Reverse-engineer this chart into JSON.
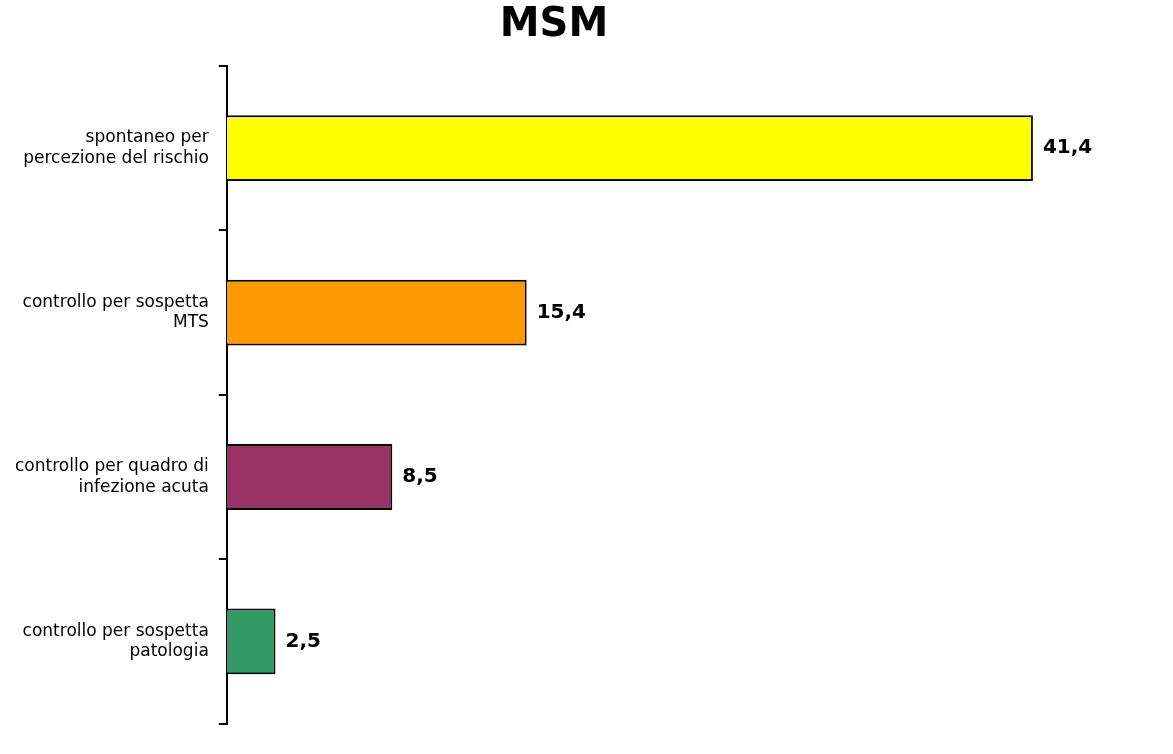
{
  "chart_data": {
    "type": "bar",
    "orientation": "horizontal",
    "title": "MSM",
    "categories": [
      "spontaneo per percezione del rischio",
      "controllo per sospetta MTS",
      "controllo per quadro di infezione acuta",
      "controllo per sospetta patologia"
    ],
    "values": [
      41.4,
      15.4,
      8.5,
      2.5
    ],
    "colors": [
      "#ffff00",
      "#ff9900",
      "#993366",
      "#339966"
    ],
    "value_labels": [
      "41,4",
      "15,4",
      "8,5",
      "2,5"
    ],
    "legend": false
  }
}
